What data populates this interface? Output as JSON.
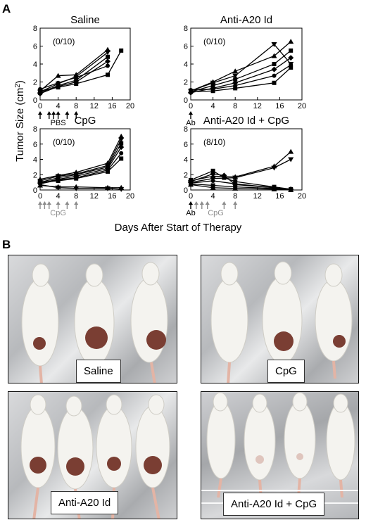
{
  "panel_a_label": "A",
  "panel_b_label": "B",
  "y_axis_label": "Tumor Size (cm",
  "y_axis_label_sup": "2",
  "y_axis_label_close": ")",
  "x_axis_label": "Days After Start of Therapy",
  "photo_labels": [
    "Saline",
    "CpG",
    "Anti-A20 Id",
    "Anti-A20 Id + CpG"
  ],
  "chart_data": [
    {
      "type": "line",
      "title": "Saline",
      "annotation": "(0/10)",
      "treatment_label": "PBS",
      "treatment_days": [
        0,
        2,
        3,
        4,
        6,
        8
      ],
      "antibody_label": "",
      "xlim": [
        0,
        20
      ],
      "ylim": [
        0,
        8
      ],
      "xticks": [
        0,
        4,
        8,
        12,
        16,
        20
      ],
      "yticks": [
        0,
        2,
        4,
        6,
        8
      ],
      "series": [
        {
          "x": [
            0,
            4,
            8,
            15
          ],
          "y": [
            1.0,
            2.7,
            2.8,
            5.6
          ]
        },
        {
          "x": [
            0,
            4,
            8,
            15
          ],
          "y": [
            0.9,
            1.8,
            2.6,
            5.3
          ]
        },
        {
          "x": [
            0,
            4,
            8,
            15
          ],
          "y": [
            0.8,
            1.6,
            2.2,
            4.8
          ]
        },
        {
          "x": [
            0,
            4,
            8,
            15
          ],
          "y": [
            0.7,
            1.5,
            2.0,
            4.3
          ]
        },
        {
          "x": [
            0,
            4,
            8,
            15
          ],
          "y": [
            1.2,
            1.9,
            2.5,
            3.8
          ]
        },
        {
          "x": [
            0,
            4,
            8,
            15,
            18
          ],
          "y": [
            1.0,
            1.4,
            1.8,
            2.8,
            5.5
          ]
        }
      ]
    },
    {
      "type": "line",
      "title": "Anti-A20 Id",
      "annotation": "(0/10)",
      "treatment_label": "",
      "treatment_days": [],
      "antibody_label": "Ab",
      "xlim": [
        0,
        20
      ],
      "ylim": [
        0,
        8
      ],
      "xticks": [
        0,
        4,
        8,
        12,
        16,
        20
      ],
      "yticks": [
        0,
        2,
        4,
        6,
        8
      ],
      "series": [
        {
          "x": [
            0,
            4,
            8,
            15,
            18
          ],
          "y": [
            1.0,
            2.0,
            3.2,
            4.9,
            6.5
          ]
        },
        {
          "x": [
            0,
            4,
            8,
            15,
            18
          ],
          "y": [
            1.0,
            1.9,
            2.7,
            6.2,
            4.0
          ]
        },
        {
          "x": [
            0,
            4,
            8,
            15,
            18
          ],
          "y": [
            0.9,
            1.6,
            2.3,
            4.0,
            5.5
          ]
        },
        {
          "x": [
            0,
            4,
            8,
            15,
            18
          ],
          "y": [
            0.8,
            1.3,
            1.9,
            3.4,
            4.7
          ]
        },
        {
          "x": [
            0,
            4,
            8,
            15,
            18
          ],
          "y": [
            1.1,
            1.2,
            1.6,
            2.7,
            3.9
          ]
        },
        {
          "x": [
            0,
            4,
            8,
            15,
            18
          ],
          "y": [
            0.9,
            1.0,
            1.3,
            1.9,
            3.6
          ]
        }
      ]
    },
    {
      "type": "line",
      "title": "CpG",
      "annotation": "(0/10)",
      "treatment_label": "CpG",
      "treatment_days": [
        0,
        1,
        2,
        4,
        6,
        8
      ],
      "antibody_label": "",
      "xlim": [
        0,
        20
      ],
      "ylim": [
        0,
        8
      ],
      "xticks": [
        0,
        4,
        8,
        12,
        16,
        20
      ],
      "yticks": [
        0,
        2,
        4,
        6,
        8
      ],
      "series": [
        {
          "x": [
            0,
            4,
            8,
            15,
            18
          ],
          "y": [
            1.4,
            1.9,
            2.3,
            3.5,
            7.0
          ]
        },
        {
          "x": [
            0,
            4,
            8,
            15,
            18
          ],
          "y": [
            1.2,
            1.8,
            2.1,
            3.2,
            6.6
          ]
        },
        {
          "x": [
            0,
            4,
            8,
            15,
            18
          ],
          "y": [
            1.0,
            1.6,
            2.0,
            3.0,
            6.1
          ]
        },
        {
          "x": [
            0,
            4,
            8,
            15,
            18
          ],
          "y": [
            0.9,
            1.4,
            1.8,
            2.8,
            5.6
          ]
        },
        {
          "x": [
            0,
            4,
            8,
            15,
            18
          ],
          "y": [
            0.8,
            1.3,
            1.6,
            2.6,
            4.8
          ]
        },
        {
          "x": [
            0,
            4,
            8,
            15,
            18
          ],
          "y": [
            1.0,
            1.2,
            1.5,
            2.4,
            4.1
          ]
        },
        {
          "x": [
            0,
            4,
            8,
            15,
            18
          ],
          "y": [
            0.6,
            0.4,
            0.4,
            0.3,
            0.3
          ]
        },
        {
          "x": [
            0,
            4,
            8,
            15,
            18
          ],
          "y": [
            0.7,
            0.3,
            0.2,
            0.2,
            0.1
          ]
        }
      ]
    },
    {
      "type": "line",
      "title": "Anti-A20 Id + CpG",
      "annotation": "(8/10)",
      "treatment_label": "CpG",
      "treatment_days": [
        1,
        2,
        3,
        6,
        8
      ],
      "antibody_label": "Ab",
      "xlim": [
        0,
        20
      ],
      "ylim": [
        0,
        8
      ],
      "xticks": [
        0,
        4,
        8,
        12,
        16,
        20
      ],
      "yticks": [
        0,
        2,
        4,
        6,
        8
      ],
      "series": [
        {
          "x": [
            0,
            4,
            8,
            15,
            18
          ],
          "y": [
            1.2,
            1.8,
            1.7,
            3.1,
            5.0
          ]
        },
        {
          "x": [
            0,
            4,
            8,
            15,
            18
          ],
          "y": [
            1.0,
            1.5,
            1.6,
            2.9,
            4.0
          ]
        },
        {
          "x": [
            0,
            4,
            6,
            8,
            15,
            18
          ],
          "y": [
            1.3,
            2.5,
            1.6,
            1.1,
            0.4,
            0.1
          ]
        },
        {
          "x": [
            0,
            4,
            6,
            8,
            15,
            18
          ],
          "y": [
            1.1,
            2.1,
            1.9,
            0.7,
            0.3,
            0.1
          ]
        },
        {
          "x": [
            0,
            4,
            8,
            15,
            18
          ],
          "y": [
            0.9,
            1.2,
            0.8,
            0.3,
            0.1
          ]
        },
        {
          "x": [
            0,
            4,
            8,
            15,
            18
          ],
          "y": [
            0.8,
            0.6,
            0.4,
            0.2,
            0.0
          ]
        },
        {
          "x": [
            0,
            4,
            8,
            15,
            18
          ],
          "y": [
            0.7,
            0.3,
            0.2,
            0.1,
            0.0
          ]
        }
      ]
    }
  ]
}
